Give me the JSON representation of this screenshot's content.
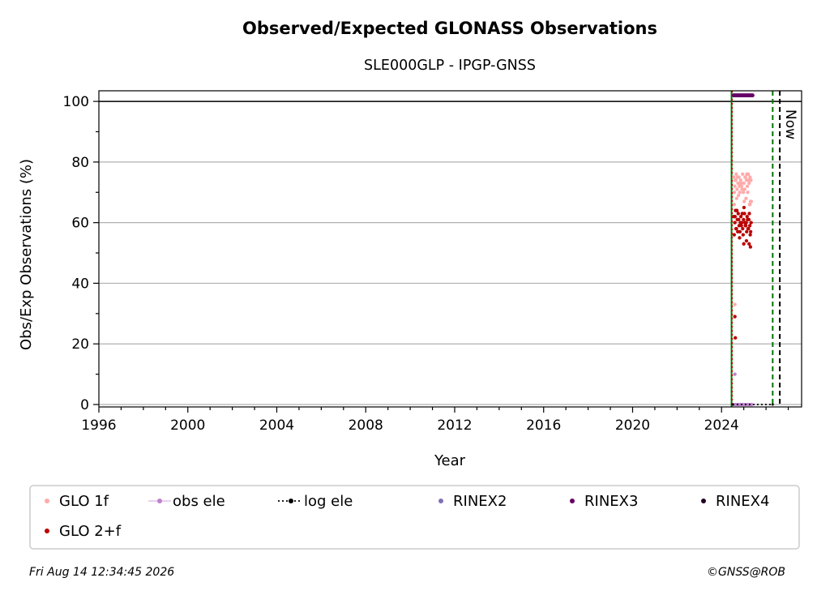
{
  "chart_data": {
    "type": "scatter",
    "title": "Observed/Expected GLONASS Observations",
    "subtitle": "SLE000GLP - IPGP-GNSS",
    "xlabel": "Year",
    "ylabel": "Obs/Exp Observations (%)",
    "xlim": [
      1996,
      2027.6
    ],
    "ylim": [
      -0.8,
      103.5
    ],
    "xticks": [
      1996,
      2000,
      2004,
      2008,
      2012,
      2016,
      2020,
      2024
    ],
    "yticks": [
      0,
      20,
      40,
      60,
      80,
      100
    ],
    "grid": "horizontal",
    "reference_line_y": 100,
    "vertical_lines": [
      {
        "x": 2024.45,
        "style": "solid",
        "color": "#007700"
      },
      {
        "x": 2024.47,
        "style": "dotted",
        "color": "#cc0000"
      },
      {
        "x": 2026.3,
        "style": "dashed",
        "color": "#007700"
      },
      {
        "x": 2026.62,
        "style": "dashed",
        "color": "#000000",
        "label": "Now"
      }
    ],
    "series": [
      {
        "name": "GLO 1f",
        "color": "#ffaaaa",
        "size": 3,
        "x": [
          2024.55,
          2024.6,
          2024.62,
          2024.66,
          2024.7,
          2024.74,
          2024.78,
          2024.82,
          2024.86,
          2024.9,
          2024.95,
          2025.0,
          2025.04,
          2025.08,
          2025.12,
          2025.16,
          2025.2,
          2025.24,
          2025.28,
          2025.32,
          2024.58,
          2024.68,
          2024.76,
          2024.84,
          2024.92,
          2025.02,
          2025.1,
          2025.18,
          2025.26,
          2025.3,
          2024.64,
          2024.72,
          2024.8,
          2024.88,
          2024.98,
          2025.06,
          2025.14,
          2025.22,
          2024.57,
          2025.28,
          2025.34,
          2024.6
        ],
        "y": [
          75,
          72,
          74,
          76,
          71,
          73,
          75,
          70,
          74,
          72,
          76,
          73,
          71,
          75,
          74,
          72,
          76,
          73,
          75,
          74,
          70,
          68,
          69,
          73,
          71,
          67,
          68,
          70,
          66,
          67,
          74,
          75,
          72,
          73,
          70,
          75,
          76,
          74,
          66,
          66,
          67,
          33
        ]
      },
      {
        "name": "GLO 2+f",
        "color": "#bb0000",
        "size": 3,
        "x": [
          2024.55,
          2024.6,
          2024.63,
          2024.67,
          2024.71,
          2024.75,
          2024.79,
          2024.83,
          2024.87,
          2024.91,
          2024.95,
          2024.99,
          2025.03,
          2025.07,
          2025.11,
          2025.15,
          2025.19,
          2025.23,
          2025.27,
          2025.31,
          2024.57,
          2024.65,
          2024.73,
          2024.81,
          2024.89,
          2024.97,
          2025.05,
          2025.13,
          2025.21,
          2025.29,
          2024.61,
          2024.69,
          2024.77,
          2024.85,
          2024.93,
          2025.01,
          2025.09,
          2025.17,
          2025.25,
          2025.33,
          2025.0,
          2025.12,
          2025.24,
          2025.3,
          2024.6,
          2024.62
        ],
        "y": [
          62,
          60,
          64,
          58,
          61,
          63,
          59,
          57,
          62,
          60,
          58,
          61,
          63,
          59,
          60,
          62,
          58,
          61,
          59,
          57,
          56,
          58,
          57,
          55,
          59,
          56,
          60,
          57,
          58,
          56,
          62,
          64,
          61,
          60,
          63,
          65,
          59,
          61,
          63,
          60,
          53,
          54,
          53,
          52,
          29,
          22
        ]
      },
      {
        "name": "obs ele",
        "color": "#c080d0",
        "size": 3,
        "x": [
          2024.55,
          2024.65,
          2024.75,
          2024.85,
          2024.95,
          2025.05,
          2025.15,
          2025.25,
          2025.35,
          2024.6
        ],
        "y": [
          0,
          0,
          0,
          0,
          0,
          0,
          0,
          0,
          0,
          10
        ]
      },
      {
        "name": "log ele",
        "color": "#000000",
        "size": 2,
        "x": [
          2024.5,
          2026.3
        ],
        "y": [
          0,
          0
        ]
      },
      {
        "name": "RINEX2",
        "color": "#8070b8",
        "size": 3,
        "x": [],
        "y": []
      },
      {
        "name": "RINEX3",
        "color": "#660066",
        "size": 3.5,
        "x": [
          2024.55,
          2024.62,
          2024.69,
          2024.76,
          2024.83,
          2024.9,
          2024.97,
          2025.04,
          2025.11,
          2025.18,
          2025.25,
          2025.32,
          2025.39
        ],
        "y": [
          102,
          102,
          102,
          102,
          102,
          102,
          102,
          102,
          102,
          102,
          102,
          102,
          102
        ]
      },
      {
        "name": "RINEX4",
        "color": "#220022",
        "size": 3,
        "x": [],
        "y": []
      }
    ]
  },
  "annotation_now": "Now",
  "legend": {
    "items": [
      {
        "label": "GLO 1f",
        "color": "#ffaaaa",
        "marker": "dot"
      },
      {
        "label": "obs ele",
        "color": "#c080d0",
        "marker": "dot-line"
      },
      {
        "label": "log ele",
        "color": "#000000",
        "marker": "dot-dotted"
      },
      {
        "label": "RINEX2",
        "color": "#8070b8",
        "marker": "dot"
      },
      {
        "label": "RINEX3",
        "color": "#660066",
        "marker": "dot"
      },
      {
        "label": "RINEX4",
        "color": "#220022",
        "marker": "dot"
      },
      {
        "label": "GLO 2+f",
        "color": "#bb0000",
        "marker": "dot"
      }
    ]
  },
  "footer": {
    "timestamp": "Fri Aug 14 12:34:45 2026",
    "credit": "©GNSS@ROB"
  }
}
